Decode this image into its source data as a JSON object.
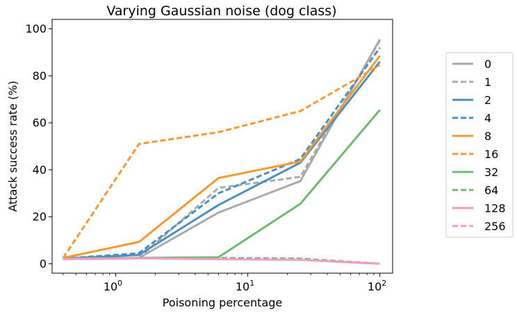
{
  "chart_data": {
    "type": "line",
    "title": "Varying Gaussian noise (dog class)",
    "xlabel": "Poisoning percentage",
    "ylabel": "Attack success rate (%)",
    "xscale": "log",
    "xlim": [
      0.33,
      125
    ],
    "ylim": [
      -4,
      104
    ],
    "x": [
      0.4,
      1.5,
      6,
      25,
      100
    ],
    "xticks": [
      {
        "value": 1,
        "base": "10",
        "exp": "0"
      },
      {
        "value": 10,
        "base": "10",
        "exp": "1"
      },
      {
        "value": 100,
        "base": "10",
        "exp": "2"
      }
    ],
    "yticks": [
      0,
      20,
      40,
      60,
      80,
      100
    ],
    "legend_position": "right",
    "series": [
      {
        "name": "0",
        "color": "#aaaaaa",
        "dash": "solid",
        "values": [
          2.2,
          2.5,
          21.8,
          35.2,
          95.5
        ]
      },
      {
        "name": "1",
        "color": "#aaaaaa",
        "dash": "dashed",
        "values": [
          2.2,
          2.5,
          32.3,
          37.0,
          95.0
        ]
      },
      {
        "name": "2",
        "color": "#4a90c2",
        "dash": "solid",
        "values": [
          2.2,
          3.8,
          25.0,
          43.0,
          86.0
        ]
      },
      {
        "name": "4",
        "color": "#4a90c2",
        "dash": "dashed",
        "values": [
          2.2,
          4.5,
          30.0,
          44.6,
          92.0
        ]
      },
      {
        "name": "8",
        "color": "#f7992e",
        "dash": "solid",
        "values": [
          2.5,
          9.3,
          36.5,
          43.5,
          88.5
        ]
      },
      {
        "name": "16",
        "color": "#f7992e",
        "dash": "dashed",
        "values": [
          2.5,
          51.0,
          56.0,
          65.0,
          84.5
        ]
      },
      {
        "name": "32",
        "color": "#6fba6f",
        "dash": "solid",
        "values": [
          2.2,
          2.5,
          2.8,
          25.5,
          65.5
        ]
      },
      {
        "name": "64",
        "color": "#6fba6f",
        "dash": "dashed",
        "values": [
          2.2,
          2.5,
          2.5,
          2.2,
          0.0
        ]
      },
      {
        "name": "128",
        "color": "#f29ac8",
        "dash": "solid",
        "values": [
          2.0,
          2.3,
          2.0,
          1.7,
          0.0
        ]
      },
      {
        "name": "256",
        "color": "#f29ac8",
        "dash": "dashed",
        "values": [
          2.0,
          2.3,
          2.0,
          1.7,
          0.0
        ]
      }
    ]
  }
}
